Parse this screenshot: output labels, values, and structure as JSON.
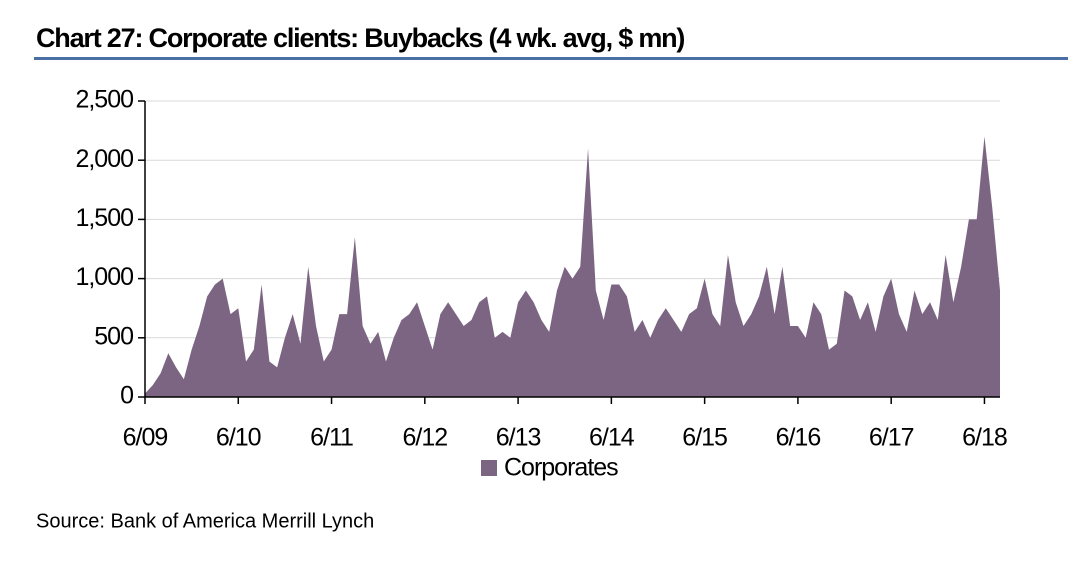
{
  "chart_data": {
    "type": "area",
    "title": "Chart 27: Corporate clients: Buybacks (4 wk. avg, $ mn)",
    "source": "Source:  Bank of America Merrill Lynch",
    "legend": "bottom",
    "grid": true,
    "x": [
      "2009-06",
      "2009-07",
      "2009-08",
      "2009-09",
      "2009-10",
      "2009-11",
      "2009-12",
      "2010-01",
      "2010-02",
      "2010-03",
      "2010-04",
      "2010-05",
      "2010-06",
      "2010-07",
      "2010-08",
      "2010-09",
      "2010-10",
      "2010-11",
      "2010-12",
      "2011-01",
      "2011-02",
      "2011-03",
      "2011-04",
      "2011-05",
      "2011-06",
      "2011-07",
      "2011-08",
      "2011-09",
      "2011-10",
      "2011-11",
      "2011-12",
      "2012-01",
      "2012-02",
      "2012-03",
      "2012-04",
      "2012-05",
      "2012-06",
      "2012-07",
      "2012-08",
      "2012-09",
      "2012-10",
      "2012-11",
      "2012-12",
      "2013-01",
      "2013-02",
      "2013-03",
      "2013-04",
      "2013-05",
      "2013-06",
      "2013-07",
      "2013-08",
      "2013-09",
      "2013-10",
      "2013-11",
      "2013-12",
      "2014-01",
      "2014-02",
      "2014-03",
      "2014-04",
      "2014-05",
      "2014-06",
      "2014-07",
      "2014-08",
      "2014-09",
      "2014-10",
      "2014-11",
      "2014-12",
      "2015-01",
      "2015-02",
      "2015-03",
      "2015-04",
      "2015-05",
      "2015-06",
      "2015-07",
      "2015-08",
      "2015-09",
      "2015-10",
      "2015-11",
      "2015-12",
      "2016-01",
      "2016-02",
      "2016-03",
      "2016-04",
      "2016-05",
      "2016-06",
      "2016-07",
      "2016-08",
      "2016-09",
      "2016-10",
      "2016-11",
      "2016-12",
      "2017-01",
      "2017-02",
      "2017-03",
      "2017-04",
      "2017-05",
      "2017-06",
      "2017-07",
      "2017-08",
      "2017-09",
      "2017-10",
      "2017-11",
      "2017-12",
      "2018-01",
      "2018-02",
      "2018-03",
      "2018-04",
      "2018-05",
      "2018-06",
      "2018-07",
      "2018-08"
    ],
    "series": [
      {
        "name": "Corporates",
        "color": "#7b6583",
        "values": [
          30,
          100,
          200,
          370,
          250,
          150,
          400,
          600,
          850,
          950,
          1000,
          700,
          750,
          300,
          400,
          950,
          300,
          250,
          500,
          700,
          450,
          1100,
          600,
          300,
          400,
          700,
          700,
          1350,
          600,
          450,
          550,
          300,
          500,
          650,
          700,
          800,
          600,
          400,
          700,
          800,
          700,
          600,
          650,
          800,
          850,
          500,
          550,
          500,
          800,
          900,
          800,
          650,
          550,
          900,
          1100,
          1000,
          1100,
          2100,
          900,
          650,
          950,
          950,
          850,
          550,
          650,
          500,
          650,
          750,
          650,
          550,
          700,
          750,
          1000,
          700,
          600,
          1200,
          800,
          600,
          700,
          850,
          1100,
          700,
          1100,
          600,
          600,
          500,
          800,
          700,
          400,
          450,
          900,
          850,
          650,
          800,
          550,
          850,
          1000,
          700,
          550,
          900,
          700,
          800,
          650,
          1200,
          800,
          1100,
          1500,
          1500,
          2200,
          1600,
          900
        ]
      }
    ],
    "xlim": [
      "2009-06",
      "2018-08"
    ],
    "xticks": [
      {
        "value": "2009-06",
        "label": "6/09"
      },
      {
        "value": "2010-06",
        "label": "6/10"
      },
      {
        "value": "2011-06",
        "label": "6/11"
      },
      {
        "value": "2012-06",
        "label": "6/12"
      },
      {
        "value": "2013-06",
        "label": "6/13"
      },
      {
        "value": "2014-06",
        "label": "6/14"
      },
      {
        "value": "2015-06",
        "label": "6/15"
      },
      {
        "value": "2016-06",
        "label": "6/16"
      },
      {
        "value": "2017-06",
        "label": "6/17"
      },
      {
        "value": "2018-06",
        "label": "6/18"
      }
    ],
    "ylim": [
      0,
      2500
    ],
    "yticks": [
      0,
      {
        "value": 500,
        "label": "500"
      },
      {
        "value": 1000,
        "label": "1,000"
      },
      {
        "value": 1500,
        "label": "1,500"
      },
      {
        "value": 2000,
        "label": "2,000"
      },
      {
        "value": 2500,
        "label": "2,500"
      }
    ]
  }
}
